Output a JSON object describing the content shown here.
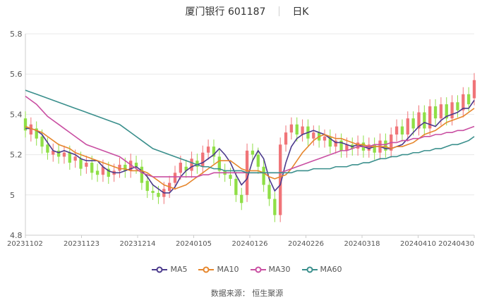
{
  "header": {
    "title": "厦门银行 601187",
    "period": "日K"
  },
  "source": "数据来源： 恒生聚源",
  "chart_data": {
    "type": "candlestick",
    "ylim": [
      4.8,
      5.8
    ],
    "yticks": [
      "4.8",
      "5",
      "5.2",
      "5.4",
      "5.6",
      "5.8"
    ],
    "xticks": [
      "20231102",
      "20231123",
      "20231214",
      "20240105",
      "20240126",
      "20240226",
      "20240318",
      "20240410",
      "20240430"
    ],
    "up_color": "#f07478",
    "down_color": "#8fdf46",
    "series": [
      {
        "name": "MA5",
        "color": "#4b3a8c",
        "values": [
          5.33,
          5.33,
          5.32,
          5.3,
          5.26,
          5.22,
          5.21,
          5.22,
          5.21,
          5.2,
          5.18,
          5.17,
          5.17,
          5.17,
          5.14,
          5.12,
          5.11,
          5.11,
          5.12,
          5.13,
          5.14,
          5.12,
          5.09,
          5.05,
          5.03,
          5.01,
          5.01,
          5.04,
          5.09,
          5.12,
          5.14,
          5.15,
          5.16,
          5.18,
          5.2,
          5.23,
          5.2,
          5.16,
          5.1,
          5.05,
          5.08,
          5.17,
          5.22,
          5.18,
          5.08,
          5.02,
          5.05,
          5.16,
          5.24,
          5.28,
          5.3,
          5.31,
          5.32,
          5.31,
          5.3,
          5.28,
          5.26,
          5.26,
          5.25,
          5.24,
          5.25,
          5.24,
          5.23,
          5.24,
          5.24,
          5.23,
          5.23,
          5.24,
          5.25,
          5.28,
          5.31,
          5.34,
          5.36,
          5.35,
          5.34,
          5.37,
          5.39,
          5.4,
          5.41,
          5.43,
          5.43,
          5.47
        ]
      },
      {
        "name": "MA10",
        "color": "#e6862c",
        "values": [
          5.34,
          5.33,
          5.32,
          5.31,
          5.29,
          5.27,
          5.25,
          5.24,
          5.23,
          5.21,
          5.2,
          5.19,
          5.18,
          5.17,
          5.16,
          5.15,
          5.14,
          5.13,
          5.13,
          5.12,
          5.12,
          5.12,
          5.11,
          5.09,
          5.07,
          5.05,
          5.04,
          5.03,
          5.04,
          5.05,
          5.07,
          5.09,
          5.11,
          5.13,
          5.15,
          5.17,
          5.17,
          5.17,
          5.15,
          5.13,
          5.12,
          5.12,
          5.12,
          5.11,
          5.09,
          5.08,
          5.09,
          5.1,
          5.13,
          5.17,
          5.21,
          5.24,
          5.27,
          5.29,
          5.3,
          5.29,
          5.28,
          5.28,
          5.27,
          5.26,
          5.25,
          5.25,
          5.24,
          5.24,
          5.24,
          5.24,
          5.23,
          5.24,
          5.24,
          5.25,
          5.26,
          5.28,
          5.3,
          5.31,
          5.32,
          5.34,
          5.36,
          5.37,
          5.38,
          5.39,
          5.41,
          5.43
        ]
      },
      {
        "name": "MA30",
        "color": "#c94fa2",
        "values": [
          5.49,
          5.47,
          5.45,
          5.42,
          5.39,
          5.37,
          5.35,
          5.33,
          5.31,
          5.29,
          5.27,
          5.25,
          5.24,
          5.23,
          5.22,
          5.21,
          5.2,
          5.19,
          5.17,
          5.15,
          5.13,
          5.11,
          5.1,
          5.09,
          5.09,
          5.09,
          5.09,
          5.09,
          5.09,
          5.09,
          5.09,
          5.09,
          5.1,
          5.1,
          5.11,
          5.11,
          5.11,
          5.11,
          5.11,
          5.11,
          5.11,
          5.11,
          5.11,
          5.11,
          5.11,
          5.11,
          5.11,
          5.12,
          5.13,
          5.14,
          5.15,
          5.16,
          5.17,
          5.18,
          5.19,
          5.2,
          5.21,
          5.22,
          5.22,
          5.23,
          5.24,
          5.24,
          5.24,
          5.25,
          5.25,
          5.25,
          5.26,
          5.26,
          5.27,
          5.27,
          5.28,
          5.28,
          5.29,
          5.29,
          5.3,
          5.3,
          5.31,
          5.31,
          5.32,
          5.32,
          5.33,
          5.34
        ]
      },
      {
        "name": "MA60",
        "color": "#3a8f8c",
        "values": [
          5.52,
          5.51,
          5.5,
          5.49,
          5.48,
          5.47,
          5.46,
          5.45,
          5.44,
          5.43,
          5.42,
          5.41,
          5.4,
          5.39,
          5.38,
          5.37,
          5.36,
          5.35,
          5.33,
          5.31,
          5.29,
          5.27,
          5.25,
          5.23,
          5.22,
          5.21,
          5.2,
          5.19,
          5.18,
          5.17,
          5.16,
          5.15,
          5.14,
          5.14,
          5.13,
          5.13,
          5.12,
          5.12,
          5.12,
          5.12,
          5.11,
          5.11,
          5.11,
          5.11,
          5.11,
          5.11,
          5.11,
          5.11,
          5.11,
          5.12,
          5.12,
          5.12,
          5.13,
          5.13,
          5.13,
          5.13,
          5.14,
          5.14,
          5.14,
          5.15,
          5.15,
          5.16,
          5.16,
          5.17,
          5.18,
          5.18,
          5.19,
          5.19,
          5.2,
          5.2,
          5.21,
          5.21,
          5.22,
          5.22,
          5.23,
          5.23,
          5.24,
          5.25,
          5.25,
          5.26,
          5.27,
          5.29
        ]
      }
    ],
    "candles": [
      [
        5.38,
        5.32
      ],
      [
        5.3,
        5.35
      ],
      [
        5.33,
        5.28
      ],
      [
        5.29,
        5.24
      ],
      [
        5.25,
        5.21
      ],
      [
        5.2,
        5.22
      ],
      [
        5.22,
        5.19
      ],
      [
        5.19,
        5.21
      ],
      [
        5.21,
        5.16
      ],
      [
        5.17,
        5.19
      ],
      [
        5.18,
        5.13
      ],
      [
        5.14,
        5.16
      ],
      [
        5.16,
        5.11
      ],
      [
        5.12,
        5.1
      ],
      [
        5.1,
        5.14
      ],
      [
        5.13,
        5.09
      ],
      [
        5.1,
        5.12
      ],
      [
        5.12,
        5.15
      ],
      [
        5.15,
        5.12
      ],
      [
        5.12,
        5.17
      ],
      [
        5.16,
        5.14
      ],
      [
        5.14,
        5.06
      ],
      [
        5.07,
        5.02
      ],
      [
        5.02,
        5.01
      ],
      [
        5.01,
        4.99
      ],
      [
        4.99,
        5.03
      ],
      [
        5.02,
        5.06
      ],
      [
        5.06,
        5.11
      ],
      [
        5.11,
        5.16
      ],
      [
        5.14,
        5.12
      ],
      [
        5.12,
        5.18
      ],
      [
        5.17,
        5.14
      ],
      [
        5.14,
        5.21
      ],
      [
        5.21,
        5.24
      ],
      [
        5.24,
        5.19
      ],
      [
        5.19,
        5.12
      ],
      [
        5.12,
        5.1
      ],
      [
        5.1,
        5.08
      ],
      [
        5.08,
        5.0
      ],
      [
        5.0,
        4.96
      ],
      [
        5.0,
        5.22
      ],
      [
        5.22,
        5.2
      ],
      [
        5.2,
        5.14
      ],
      [
        5.14,
        5.05
      ],
      [
        5.05,
        4.98
      ],
      [
        4.98,
        4.9
      ],
      [
        4.9,
        5.25
      ],
      [
        5.25,
        5.31
      ],
      [
        5.31,
        5.35
      ],
      [
        5.35,
        5.3
      ],
      [
        5.3,
        5.34
      ],
      [
        5.34,
        5.28
      ],
      [
        5.28,
        5.31
      ],
      [
        5.31,
        5.27
      ],
      [
        5.27,
        5.29
      ],
      [
        5.29,
        5.24
      ],
      [
        5.24,
        5.27
      ],
      [
        5.27,
        5.22
      ],
      [
        5.22,
        5.25
      ],
      [
        5.25,
        5.23
      ],
      [
        5.23,
        5.26
      ],
      [
        5.26,
        5.22
      ],
      [
        5.22,
        5.25
      ],
      [
        5.25,
        5.21
      ],
      [
        5.21,
        5.27
      ],
      [
        5.27,
        5.22
      ],
      [
        5.22,
        5.3
      ],
      [
        5.3,
        5.34
      ],
      [
        5.34,
        5.3
      ],
      [
        5.3,
        5.38
      ],
      [
        5.38,
        5.33
      ],
      [
        5.33,
        5.41
      ],
      [
        5.41,
        5.33
      ],
      [
        5.33,
        5.44
      ],
      [
        5.44,
        5.38
      ],
      [
        5.38,
        5.45
      ],
      [
        5.45,
        5.38
      ],
      [
        5.38,
        5.46
      ],
      [
        5.46,
        5.42
      ],
      [
        5.42,
        5.5
      ],
      [
        5.5,
        5.45
      ],
      [
        5.48,
        5.57
      ]
    ]
  }
}
